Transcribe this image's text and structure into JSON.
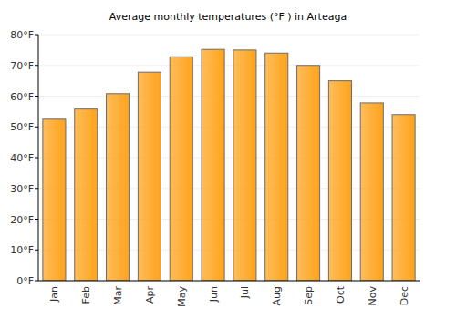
{
  "chart_data": {
    "type": "bar",
    "title": "Average monthly temperatures (°F ) in Arteaga",
    "categories": [
      "Jan",
      "Feb",
      "Mar",
      "Apr",
      "May",
      "Jun",
      "Jul",
      "Aug",
      "Sep",
      "Oct",
      "Nov",
      "Dec"
    ],
    "values": [
      52.5,
      55.8,
      60.8,
      67.8,
      72.8,
      75.2,
      75,
      74,
      70,
      65,
      57.8,
      54
    ],
    "color": "#ffa31a",
    "ylim": [
      0,
      80
    ],
    "yticks": [
      {
        "value": 0,
        "label": "0°F"
      },
      {
        "value": 10,
        "label": "10°F"
      },
      {
        "value": 20,
        "label": "20°F"
      },
      {
        "value": 30,
        "label": "30°F"
      },
      {
        "value": 40,
        "label": "40°F"
      },
      {
        "value": 50,
        "label": "50°F"
      },
      {
        "value": 60,
        "label": "60°F"
      },
      {
        "value": 70,
        "label": "70°F"
      },
      {
        "value": 80,
        "label": "80°F"
      }
    ],
    "grid": true
  }
}
